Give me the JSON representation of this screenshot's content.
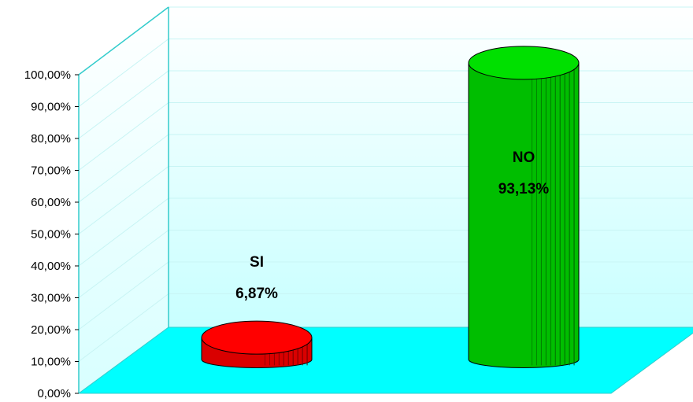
{
  "chart_data": {
    "type": "bar",
    "style": "3d-cylinder",
    "categories": [
      "SI",
      "NO"
    ],
    "values": [
      6.87,
      93.13
    ],
    "value_labels": [
      "6,87%",
      "93,13%"
    ],
    "colors": [
      "#ff0000",
      "#00e000"
    ],
    "ylim": [
      0,
      100
    ],
    "y_ticks": [
      "0,00%",
      "10,00%",
      "20,00%",
      "30,00%",
      "40,00%",
      "50,00%",
      "60,00%",
      "70,00%",
      "80,00%",
      "90,00%",
      "100,00%"
    ],
    "grid": true,
    "legend": false,
    "title": "",
    "xlabel": "",
    "ylabel": ""
  },
  "colors": {
    "floor": "#00ffff",
    "wall": "#e8ffff",
    "frame": "#33cccc"
  }
}
